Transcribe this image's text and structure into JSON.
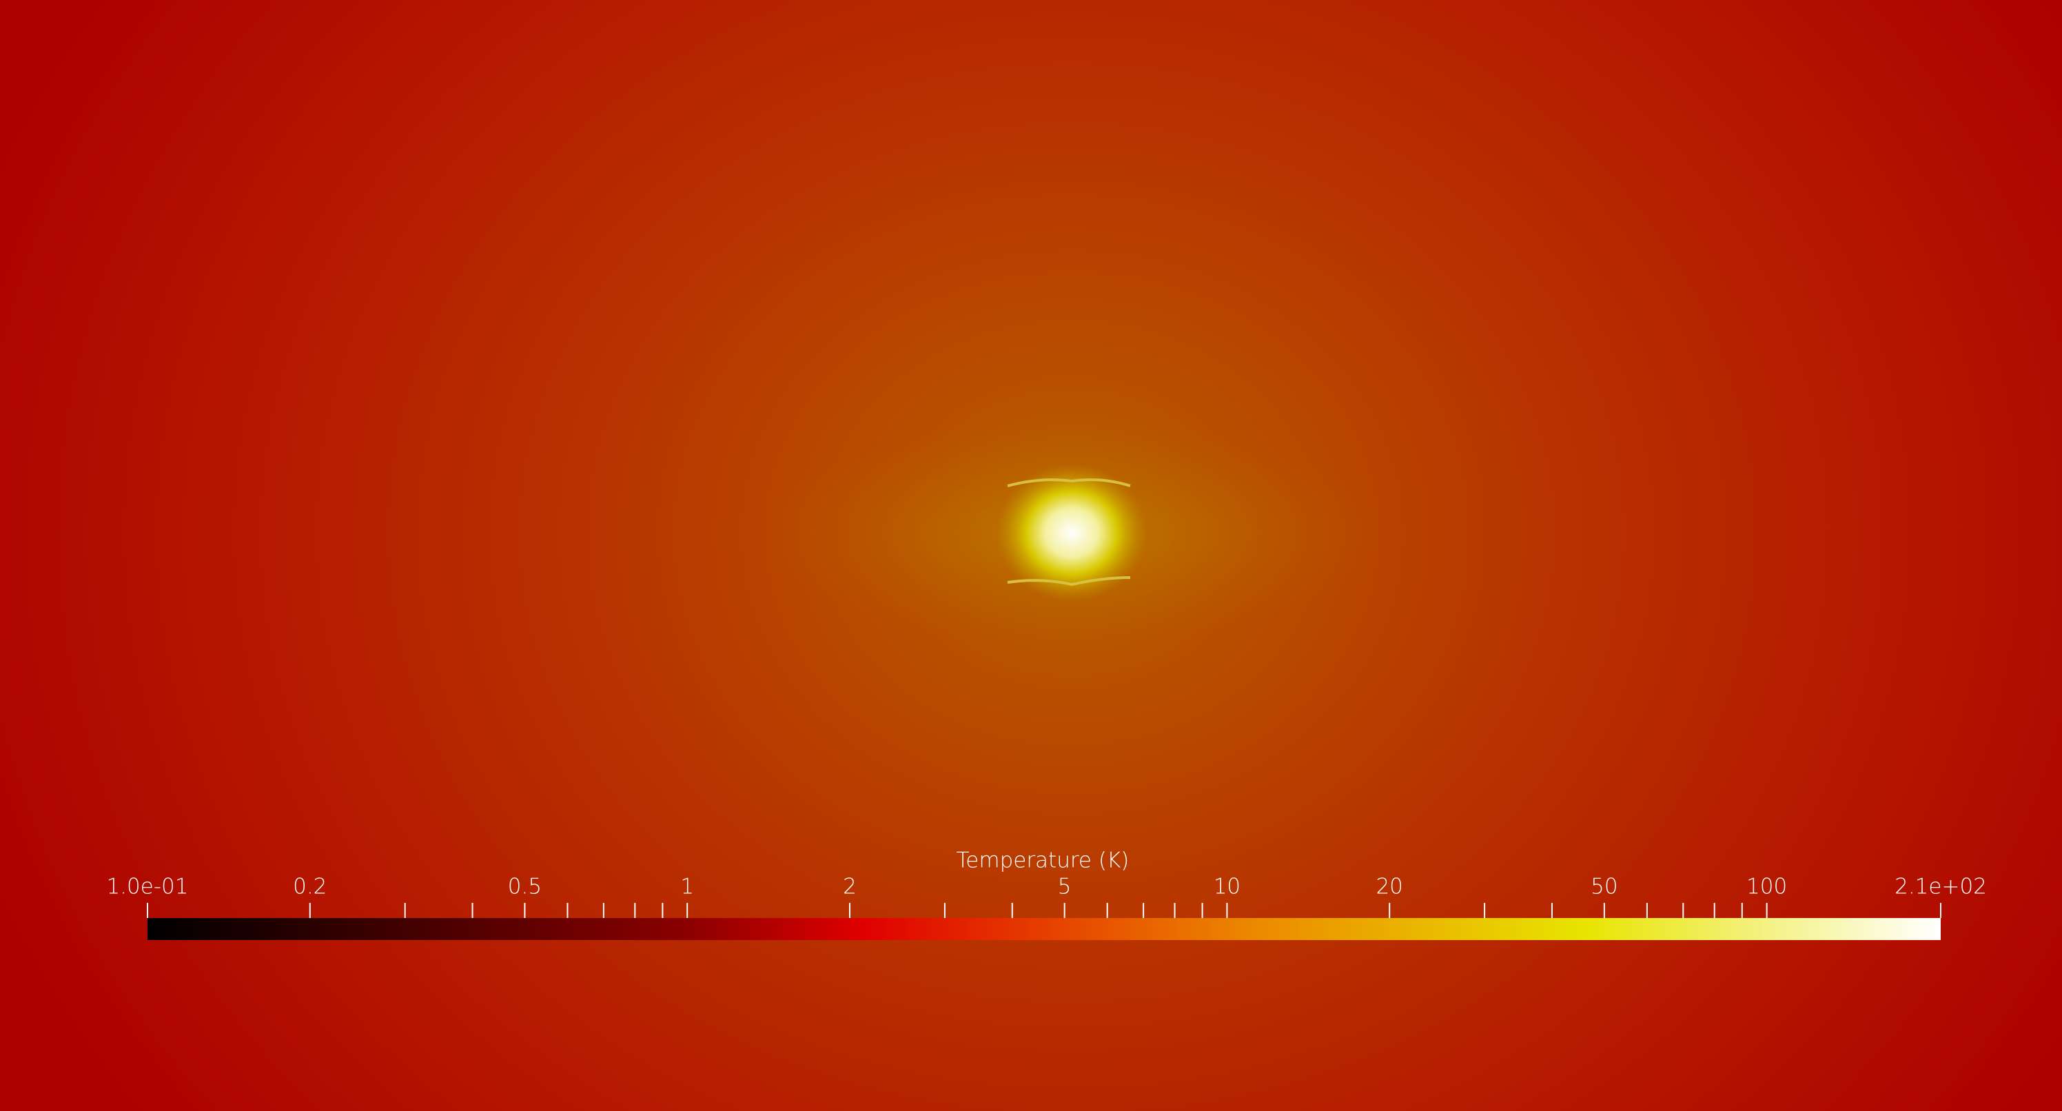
{
  "colorbar": {
    "title": "Temperature (K)",
    "range": [
      0.1,
      210
    ],
    "log": true,
    "ticks": [
      {
        "value": 0.1,
        "label": "1.0e-01"
      },
      0.2,
      0.5,
      1,
      2,
      5,
      10,
      20,
      50,
      100,
      {
        "value": 210,
        "label": "2.1e+02"
      }
    ],
    "minor_ticks": [
      0.3,
      0.4,
      0.6,
      0.7,
      0.8,
      0.9,
      3,
      4,
      6,
      7,
      8,
      9,
      30,
      40,
      60,
      70,
      80,
      90
    ],
    "colormap": [
      {
        "offset": 0,
        "color": "#000000"
      },
      {
        "offset": 0.3,
        "color": "#8a0000"
      },
      {
        "offset": 0.4,
        "color": "#e00000"
      },
      {
        "offset": 0.62,
        "color": "#ec8a00"
      },
      {
        "offset": 0.8,
        "color": "#e8e400"
      },
      {
        "offset": 1,
        "color": "#ffffff"
      }
    ]
  }
}
